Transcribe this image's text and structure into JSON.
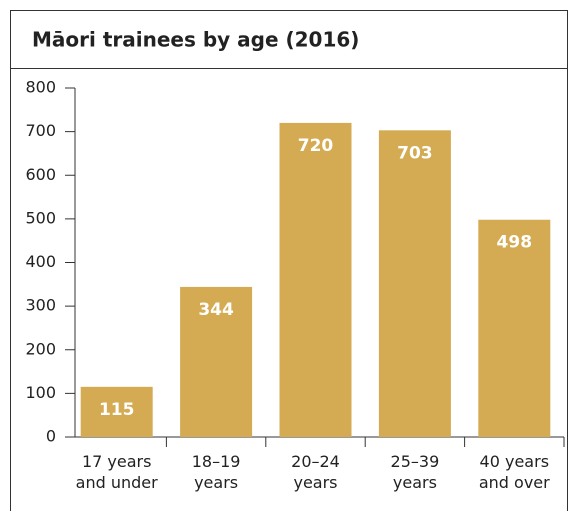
{
  "chart_data": {
    "type": "bar",
    "title": "Māori trainees by age (2016)",
    "categories": [
      "17 years and under",
      "18–19 years",
      "20–24 years",
      "25–39 years",
      "40 years and over"
    ],
    "values": [
      115,
      344,
      720,
      703,
      498
    ],
    "color": "#d4ab52",
    "ylim": [
      0,
      800
    ],
    "yticks": [
      0,
      100,
      200,
      300,
      400,
      500,
      600,
      700,
      800
    ]
  }
}
